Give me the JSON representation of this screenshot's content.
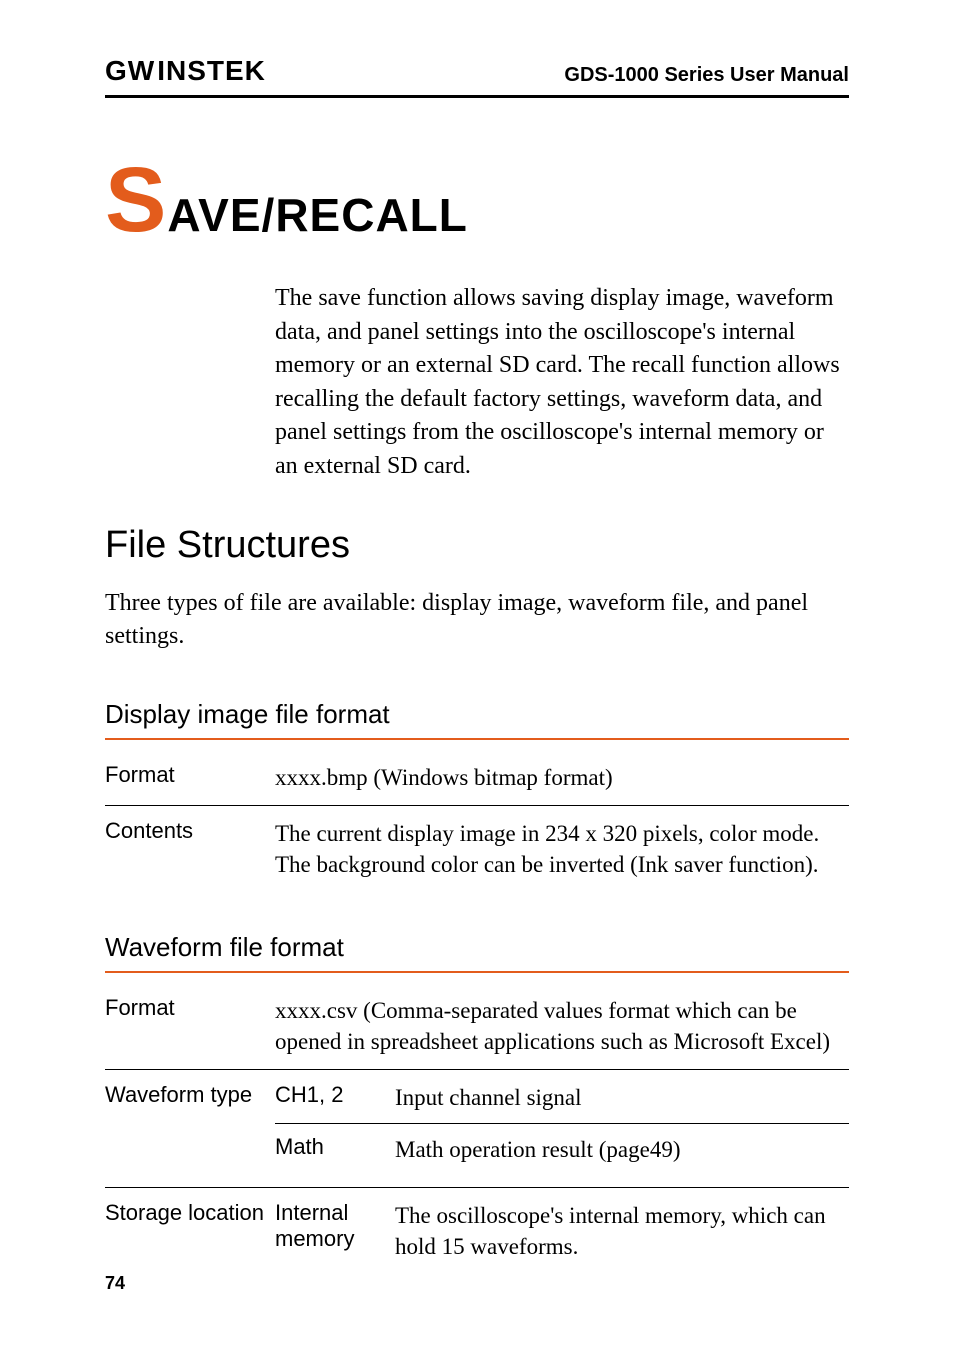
{
  "header": {
    "brand_gw": "G",
    "brand_u": "W",
    "brand_instek": "INSTEK",
    "doc_title": "GDS-1000 Series User Manual"
  },
  "chapter": {
    "drop_cap": "S",
    "title_rest": "AVE/RECALL",
    "intro": "The save function allows saving display image, waveform data, and panel settings into the oscilloscope's internal memory or an external SD card. The recall function allows recalling the default factory settings, waveform data, and panel settings from the oscilloscope's internal memory or an external SD card."
  },
  "section_file_structures": {
    "heading": "File Structures",
    "body": "Three types of file are available: display image, waveform file, and panel settings."
  },
  "display_image": {
    "heading": "Display image file format",
    "rows": [
      {
        "label": "Format",
        "value": "xxxx.bmp (Windows bitmap format)"
      },
      {
        "label": "Contents",
        "value": "The current display image in 234 x 320 pixels, color mode. The background color can be inverted (Ink saver function)."
      }
    ]
  },
  "waveform": {
    "heading": "Waveform file format",
    "format": {
      "label": "Format",
      "value": "xxxx.csv (Comma-separated values format which can be opened in spreadsheet applications such as Microsoft Excel)"
    },
    "waveform_type": {
      "label": "Waveform type",
      "items": [
        {
          "sub": "CH1, 2",
          "val": "Input channel signal"
        },
        {
          "sub": "Math",
          "val": "Math operation result (page49)"
        }
      ]
    },
    "storage": {
      "label": "Storage location",
      "items": [
        {
          "sub": "Internal memory",
          "val": "The oscilloscope's internal memory, which can hold 15 waveforms."
        }
      ]
    }
  },
  "page_number": "74",
  "colors": {
    "accent": "#e35c1c",
    "text": "#000000",
    "background": "#ffffff"
  }
}
